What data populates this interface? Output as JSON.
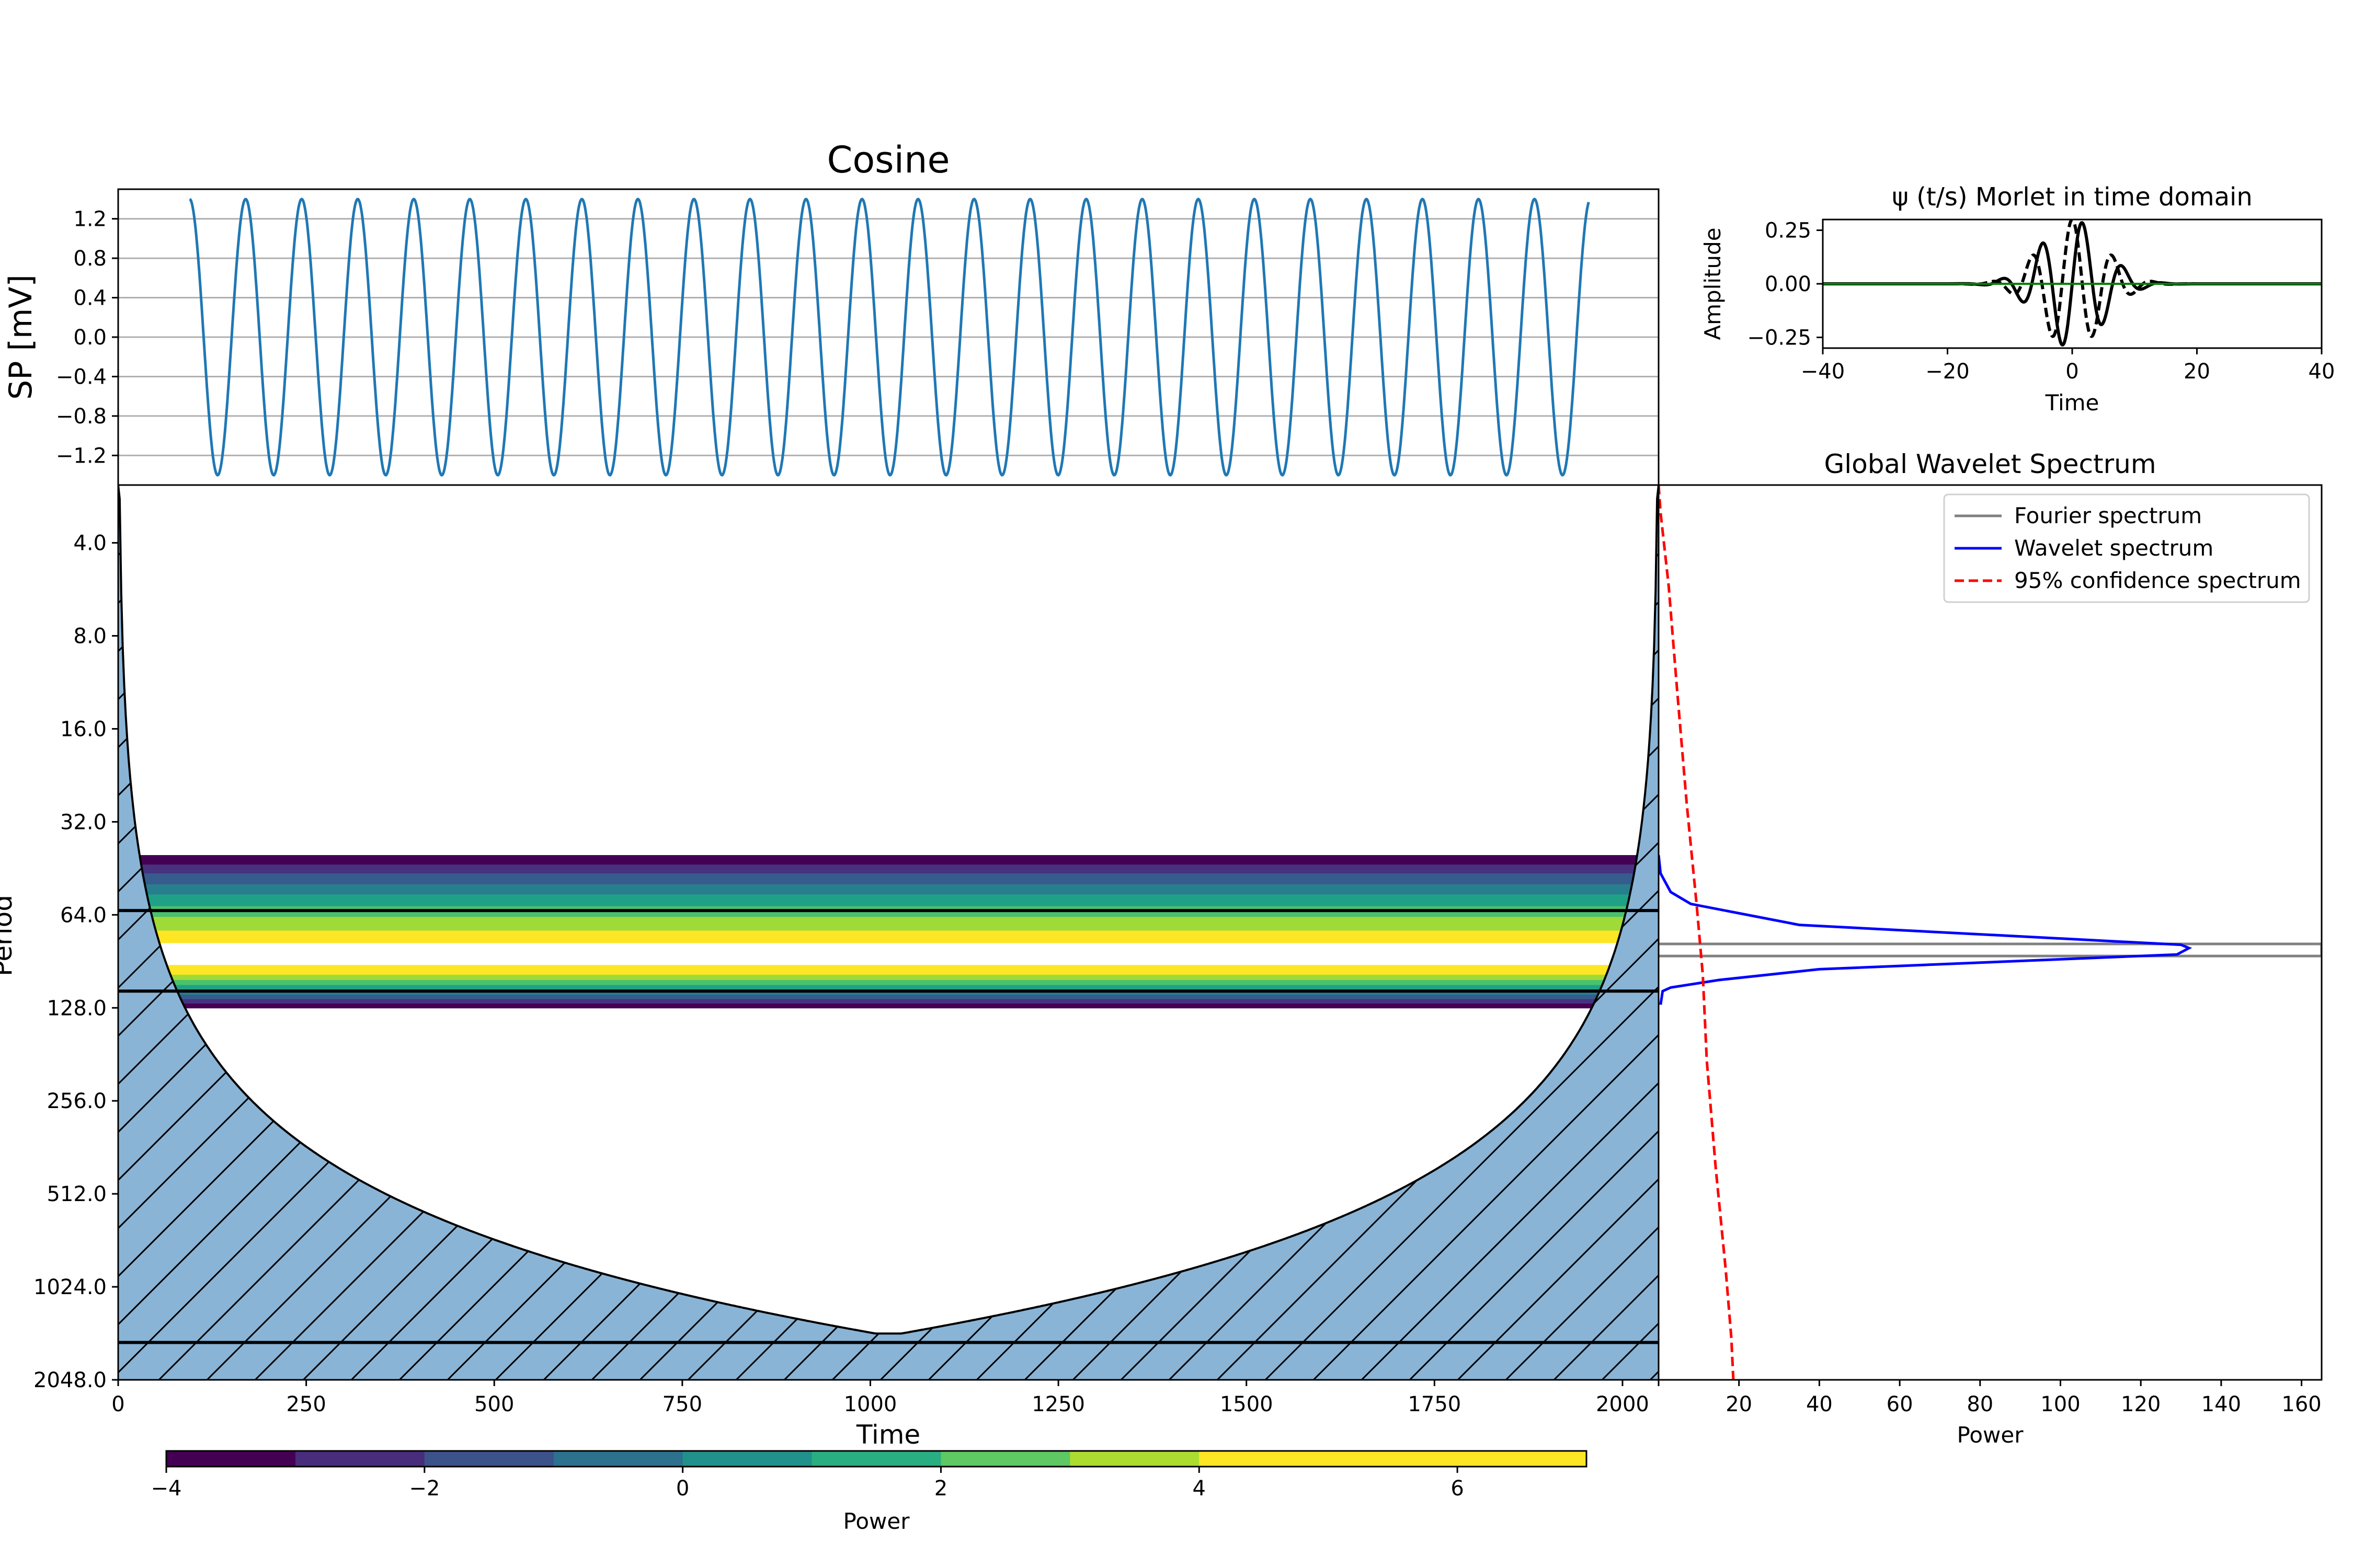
{
  "chart_data": [
    {
      "id": "signal",
      "type": "line",
      "title": "Cosine",
      "xlabel": "",
      "ylabel": "SP [mV]",
      "xlim": [
        0,
        2048
      ],
      "ylim": [
        -1.5,
        1.5
      ],
      "yticks": [
        1.2,
        0.8,
        0.4,
        0.0,
        -0.4,
        -0.8,
        -1.2
      ],
      "ytick_labels": [
        "1.2",
        "0.8",
        "0.4",
        "0.0",
        "−0.4",
        "−0.8",
        "−1.2"
      ],
      "grid": true,
      "series": [
        {
          "amplitude": 1.4,
          "period": 74.5,
          "x_start": 95,
          "x_end": 1955,
          "values_note": ""
        }
      ],
      "color": "#1f77b4"
    },
    {
      "id": "wavelet",
      "type": "line",
      "title": "ψ (t/s) Morlet in time domain",
      "xlabel": "Time",
      "ylabel": "Amplitude",
      "xlim": [
        -40,
        40
      ],
      "ylim": [
        -0.3,
        0.3
      ],
      "xticks": [
        -40,
        -20,
        0,
        20,
        40
      ],
      "xtick_labels": [
        "−40",
        "−20",
        "0",
        "20",
        "40"
      ],
      "yticks": [
        0.25,
        0.0,
        -0.25
      ],
      "ytick_labels": [
        "0.25",
        "0.00",
        "−0.25"
      ],
      "series": [
        {
          "style": "solid",
          "color": "#000000",
          "phase": "sin"
        },
        {
          "style": "dashed",
          "color": "#000000",
          "phase": "cos"
        },
        {
          "style": "solid",
          "color": "#008000",
          "phase": "zero"
        }
      ]
    },
    {
      "id": "power",
      "type": "heatmap",
      "title": "",
      "xlabel": "Time",
      "ylabel": "Period",
      "xlim": [
        0,
        2048
      ],
      "xticks": [
        0,
        250,
        500,
        750,
        1000,
        1250,
        1500,
        1750,
        2000
      ],
      "xtick_labels": [
        "0",
        "250",
        "500",
        "750",
        "1000",
        "1250",
        "1500",
        "1750",
        "2000"
      ],
      "yscale": "log2",
      "ylim": [
        2.6,
        2048
      ],
      "yticks": [
        4,
        8,
        16,
        32,
        64,
        128,
        256,
        512,
        1024,
        2048
      ],
      "ytick_labels": [
        "4.0",
        "8.0",
        "16.0",
        "32.0",
        "64.0",
        "128.0",
        "256.0",
        "512.0",
        "1024.0",
        "2048.0"
      ],
      "band_center_period": 86,
      "band_colors": [
        "#440154",
        "#46327e",
        "#365c8d",
        "#277f8e",
        "#1fa187",
        "#4ac16d",
        "#a0da39",
        "#fde725",
        "#ffffff",
        "#fde725",
        "#a0da39",
        "#4ac16d",
        "#1fa187",
        "#277f8e",
        "#365c8d",
        "#46327e",
        "#440154"
      ],
      "band_periods": [
        41,
        44,
        47,
        51,
        55,
        60,
        65,
        72,
        79,
        93,
        100,
        104,
        108,
        112,
        116,
        120,
        124,
        128
      ],
      "significance_contour_periods": [
        62,
        113,
        1550
      ],
      "coi_peak_period": 1450,
      "hatch_fill": "#8ab4d6",
      "colorbar": {
        "label": "Power",
        "range": [
          -4,
          7
        ],
        "ticks": [
          -4,
          -2,
          0,
          2,
          4,
          6
        ],
        "tick_labels": [
          "−4",
          "−2",
          "0",
          "2",
          "4",
          "6"
        ],
        "colors": [
          "#440154",
          "#472d7b",
          "#3b528b",
          "#2c728e",
          "#21918c",
          "#28ae80",
          "#5ec962",
          "#addc30",
          "#fde725",
          "#fde725",
          "#fde725"
        ]
      }
    },
    {
      "id": "global",
      "type": "line",
      "title": "Global Wavelet Spectrum",
      "xlabel": "Power",
      "ylabel": "",
      "xlim": [
        0,
        165
      ],
      "xticks": [
        0,
        20,
        40,
        60,
        80,
        100,
        120,
        140,
        160
      ],
      "xtick_labels": [
        "0",
        "20",
        "40",
        "60",
        "80",
        "100",
        "120",
        "140",
        "160"
      ],
      "legend_position": "top-right",
      "series": [
        {
          "name": "Fourier spectrum",
          "color": "#808080",
          "style": "solid",
          "points": [
            [
              0,
              79.5
            ],
            [
              165,
              79.5
            ],
            [
              165,
              87
            ],
            [
              0,
              87
            ]
          ]
        },
        {
          "name": "Wavelet spectrum",
          "color": "#0000ff",
          "style": "solid",
          "points": [
            [
              0,
              41
            ],
            [
              0.5,
              47
            ],
            [
              3,
              54
            ],
            [
              8,
              59
            ],
            [
              35,
              69
            ],
            [
              130,
              80
            ],
            [
              132,
              82
            ],
            [
              129,
              86
            ],
            [
              40,
              96
            ],
            [
              15,
              104
            ],
            [
              3,
              110
            ],
            [
              1,
              113
            ],
            [
              0.5,
              125
            ]
          ]
        },
        {
          "name": "95% confidence spectrum",
          "color": "#ff0000",
          "style": "dashed",
          "points": [
            [
              0,
              2.6
            ],
            [
              0.5,
              3.2
            ],
            [
              2.5,
              5.5
            ],
            [
              4.6,
              12
            ],
            [
              7,
              28
            ],
            [
              9.5,
              60
            ],
            [
              11,
              100
            ],
            [
              12,
              190
            ],
            [
              14.2,
              420
            ],
            [
              16.7,
              900
            ],
            [
              18.1,
              1500
            ],
            [
              18.6,
              2048
            ]
          ]
        }
      ]
    }
  ]
}
